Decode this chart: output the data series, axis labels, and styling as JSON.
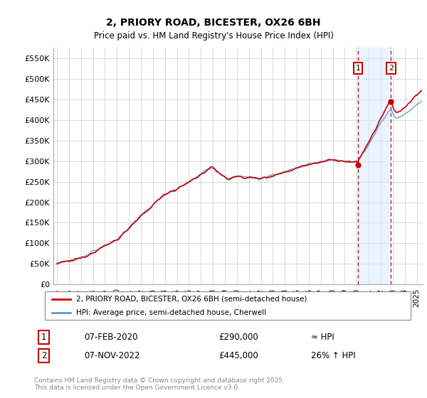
{
  "title_line1": "2, PRIORY ROAD, BICESTER, OX26 6BH",
  "title_line2": "Price paid vs. HM Land Registry's House Price Index (HPI)",
  "ylabel_ticks": [
    "£0",
    "£50K",
    "£100K",
    "£150K",
    "£200K",
    "£250K",
    "£300K",
    "£350K",
    "£400K",
    "£450K",
    "£500K",
    "£550K"
  ],
  "ytick_values": [
    0,
    50000,
    100000,
    150000,
    200000,
    250000,
    300000,
    350000,
    400000,
    450000,
    500000,
    550000
  ],
  "ylim": [
    0,
    575000
  ],
  "xlim_start": 1994.7,
  "xlim_end": 2025.5,
  "xticks": [
    1995,
    1996,
    1997,
    1998,
    1999,
    2000,
    2001,
    2002,
    2003,
    2004,
    2005,
    2006,
    2007,
    2008,
    2009,
    2010,
    2011,
    2012,
    2013,
    2014,
    2015,
    2016,
    2017,
    2018,
    2019,
    2020,
    2021,
    2022,
    2023,
    2024,
    2025
  ],
  "hpi_color": "#5b9bd5",
  "price_color": "#cc0000",
  "vline_color": "#cc0000",
  "shade_color": "#ddeeff",
  "transaction1_date": 2020.1,
  "transaction2_date": 2022.85,
  "transaction1_price": 290000,
  "transaction2_price": 445000,
  "legend_price_label": "2, PRIORY ROAD, BICESTER, OX26 6BH (semi-detached house)",
  "legend_hpi_label": "HPI: Average price, semi-detached house, Cherwell",
  "table_row1": [
    "1",
    "07-FEB-2020",
    "£290,000",
    "≈ HPI"
  ],
  "table_row2": [
    "2",
    "07-NOV-2022",
    "£445,000",
    "26% ↑ HPI"
  ],
  "footer": "Contains HM Land Registry data © Crown copyright and database right 2025.\nThis data is licensed under the Open Government Licence v3.0.",
  "background_color": "#ffffff",
  "grid_color": "#cccccc"
}
